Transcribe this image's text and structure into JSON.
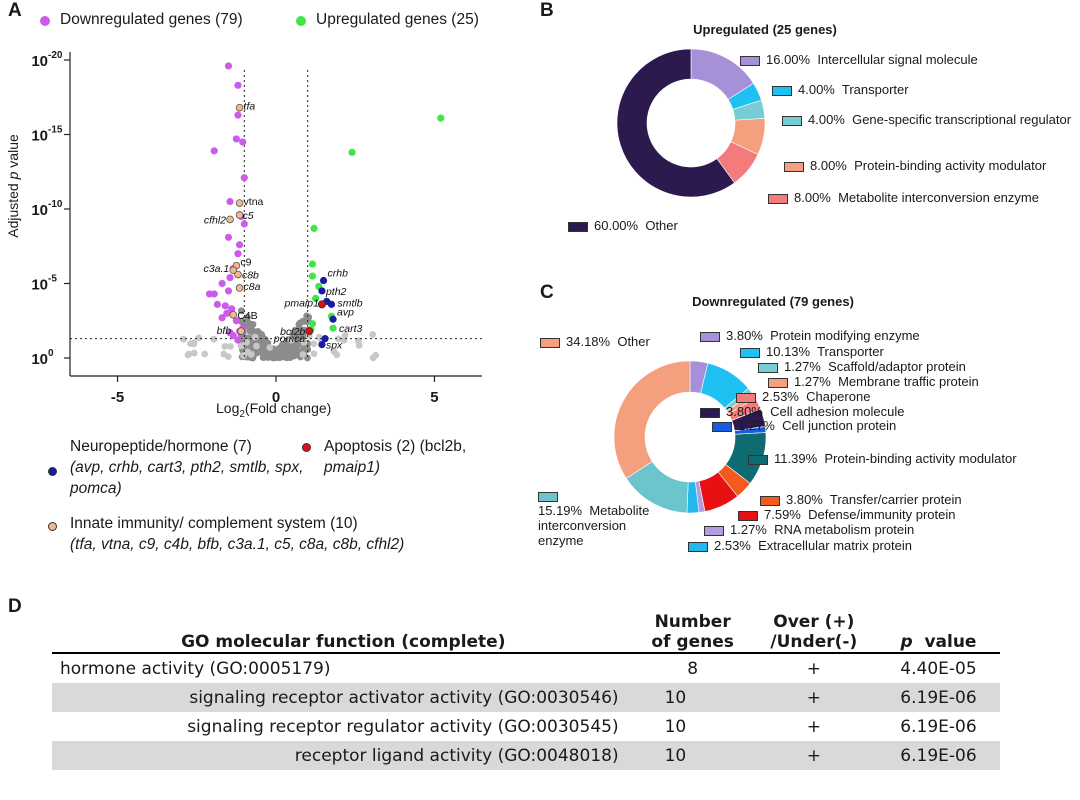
{
  "panels": {
    "a": "A",
    "b": "B",
    "c": "C",
    "d": "D"
  },
  "volcano": {
    "legend": {
      "down": {
        "label": "Downregulated genes (79)",
        "color": "#cc5ce8"
      },
      "up": {
        "label": "Upregulated genes (25)",
        "color": "#3ee64a"
      }
    },
    "xlabel_pre": "Log",
    "xlabel_sub": "2",
    "xlabel_post": "(Fold change)",
    "ylabel_pre": "Adjusted ",
    "ylabel_italic": "p",
    "ylabel_post": " value",
    "x_ticks": [
      "-5",
      "0",
      "5"
    ],
    "y_ticks": [
      {
        "base": "10",
        "exp": "0"
      },
      {
        "base": "10",
        "exp": "-5"
      },
      {
        "base": "10",
        "exp": "-10"
      },
      {
        "base": "10",
        "exp": "-15"
      },
      {
        "base": "10",
        "exp": "-20"
      }
    ],
    "colors": {
      "grey": "#8c8c8c",
      "neuro": "#1a1aa6",
      "apoptosis": "#e01010",
      "immune": "#f2b88e"
    },
    "labels": [
      "tfa",
      "vtna",
      "c5",
      "cfhl2",
      "c9",
      "c3a.1",
      "c8b",
      "c8a",
      "C4B",
      "bfb",
      "crhb",
      "pth2",
      "smtlb",
      "pmaip1",
      "avp",
      "bcl2b",
      "cart3",
      "pomca",
      "spx"
    ]
  },
  "categories": {
    "neuro_title": "Neuropeptide/hormone (7)",
    "neuro_genes": "(avp, crhb, cart3, pth2, smtlb, spx, pomca)",
    "apop_title": "Apoptosis (2) (bcl2b,",
    "apop_genes": "pmaip1)",
    "immune_title": "Innate immunity/ complement system (10)",
    "immune_genes": "(tfa, vtna, c9, c4b, bfb, c3a.1, c5, c8a, c8b, cfhl2)"
  },
  "chart_data": [
    {
      "type": "scatter",
      "panel": "A",
      "xlabel": "Log2(Fold change)",
      "ylabel": "Adjusted p value",
      "xlim": [
        -6.5,
        6.5
      ],
      "ylim_exponent": [
        0,
        -20
      ],
      "y_scale": "log",
      "series": [
        {
          "name": "Downregulated genes (79)",
          "points": [
            [
              -1.5,
              -19.6
            ],
            [
              -1.2,
              -18.3
            ],
            [
              -1.2,
              -16.3
            ],
            [
              -1.05,
              -14.5
            ],
            [
              -1.95,
              -13.9
            ],
            [
              -1.25,
              -14.7
            ],
            [
              -1.0,
              -12.1
            ],
            [
              -1.45,
              -10.5
            ],
            [
              -1.1,
              -9.5
            ],
            [
              -1.0,
              -9.0
            ],
            [
              -1.5,
              -8.1
            ],
            [
              -1.15,
              -7.6
            ],
            [
              -1.2,
              -7.0
            ],
            [
              -1.35,
              -6.0
            ],
            [
              -1.45,
              -5.4
            ],
            [
              -1.7,
              -5.0
            ],
            [
              -2.1,
              -4.3
            ],
            [
              -1.95,
              -4.3
            ],
            [
              -1.5,
              -4.5
            ],
            [
              -1.85,
              -3.6
            ],
            [
              -1.6,
              -3.5
            ],
            [
              -1.4,
              -3.3
            ],
            [
              -1.55,
              -3.0
            ],
            [
              -1.7,
              -2.7
            ],
            [
              -1.25,
              -2.5
            ],
            [
              -1.05,
              -2.0
            ],
            [
              -1.15,
              -1.8
            ],
            [
              -1.45,
              -1.7
            ],
            [
              -1.35,
              -1.5
            ],
            [
              -1.2,
              -1.2
            ]
          ]
        },
        {
          "name": "Upregulated genes (25)",
          "points": [
            [
              5.2,
              -16.1
            ],
            [
              2.4,
              -13.8
            ],
            [
              1.2,
              -8.7
            ],
            [
              1.15,
              -6.3
            ],
            [
              1.15,
              -5.5
            ],
            [
              1.35,
              -4.8
            ],
            [
              1.6,
              -3.8
            ],
            [
              1.25,
              -4.0
            ],
            [
              1.75,
              -2.8
            ],
            [
              1.15,
              -2.3
            ],
            [
              1.1,
              -1.9
            ],
            [
              1.8,
              -2.0
            ]
          ]
        },
        {
          "name": "Neuropeptide/hormone (7)",
          "points": [
            [
              1.5,
              -5.2
            ],
            [
              1.45,
              -4.5
            ],
            [
              1.6,
              -3.8
            ],
            [
              1.75,
              -3.6
            ],
            [
              1.8,
              -2.6
            ],
            [
              1.55,
              -1.3
            ],
            [
              1.45,
              -0.9
            ]
          ]
        },
        {
          "name": "Apoptosis (2)",
          "points": [
            [
              1.45,
              -3.6
            ],
            [
              1.05,
              -1.8
            ]
          ]
        },
        {
          "name": "Innate immunity/ complement system (10)",
          "points": [
            [
              -1.15,
              -16.8
            ],
            [
              -1.15,
              -10.4
            ],
            [
              -1.15,
              -9.6
            ],
            [
              -1.45,
              -9.3
            ],
            [
              -1.25,
              -6.2
            ],
            [
              -1.35,
              -5.9
            ],
            [
              -1.2,
              -5.6
            ],
            [
              -1.15,
              -4.7
            ],
            [
              -1.35,
              -2.9
            ],
            [
              -1.1,
              -1.8
            ]
          ]
        }
      ]
    },
    {
      "type": "pie",
      "panel": "B",
      "title": "Upregulated (25 genes)",
      "slices": [
        {
          "label": "Intercellular signal molecule",
          "value": 16.0,
          "pct": "16.00%",
          "color": "#a690d8"
        },
        {
          "label": "Transporter",
          "value": 4.0,
          "pct": "4.00%",
          "color": "#1ec1f2"
        },
        {
          "label": "Gene-specific transcriptional regulator",
          "value": 4.0,
          "pct": "4.00%",
          "color": "#78ccd4"
        },
        {
          "label": "Protein-binding activity modulator",
          "value": 8.0,
          "pct": "8.00%",
          "color": "#f4a07e"
        },
        {
          "label": "Metabolite interconversion enzyme",
          "value": 8.0,
          "pct": "8.00%",
          "color": "#f47b7b"
        },
        {
          "label": "Other",
          "value": 60.0,
          "pct": "60.00%",
          "color": "#2c1a4e"
        }
      ]
    },
    {
      "type": "pie",
      "panel": "C",
      "title": "Downregulated (79 genes)",
      "slices": [
        {
          "label": "Protein modifying enzyme",
          "value": 3.8,
          "pct": "3.80%",
          "color": "#a690d8"
        },
        {
          "label": "Transporter",
          "value": 10.13,
          "pct": "10.13%",
          "color": "#1ec1f2"
        },
        {
          "label": "Scaffold/adaptor protein",
          "value": 1.27,
          "pct": "1.27%",
          "color": "#78ccd4"
        },
        {
          "label": "Membrane traffic protein",
          "value": 1.27,
          "pct": "1.27%",
          "color": "#f4a07e"
        },
        {
          "label": "Chaperone",
          "value": 2.53,
          "pct": "2.53%",
          "color": "#f47b7b"
        },
        {
          "label": "Cell adhesion molecule",
          "value": 3.8,
          "pct": "3.80%",
          "color": "#2c1a4e"
        },
        {
          "label": "Cell junction protein",
          "value": 1.27,
          "pct": "1.27%",
          "color": "#1a5ce0"
        },
        {
          "label": "Protein-binding activity modulator",
          "value": 11.39,
          "pct": "11.39%",
          "color": "#0f6b72"
        },
        {
          "label": "Transfer/carrier protein",
          "value": 3.8,
          "pct": "3.80%",
          "color": "#f25a1e"
        },
        {
          "label": "Defense/immunity protein",
          "value": 7.59,
          "pct": "7.59%",
          "color": "#e81010"
        },
        {
          "label": "RNA metabolism protein",
          "value": 1.27,
          "pct": "1.27%",
          "color": "#b49be0"
        },
        {
          "label": "Extracellular matrix protein",
          "value": 2.53,
          "pct": "2.53%",
          "color": "#22b8ee"
        },
        {
          "label": "Metabolite interconversion enzyme",
          "value": 15.19,
          "pct": "15.19%",
          "color": "#6cc4cc"
        },
        {
          "label": "Other",
          "value": 34.18,
          "pct": "34.18%",
          "color": "#f4a07e"
        }
      ]
    },
    {
      "type": "table",
      "panel": "D",
      "columns": [
        "GO molecular function (complete)",
        "Number of genes",
        "Over (+) /Under(-)",
        "p value"
      ],
      "header": {
        "c1": "GO molecular function (complete)",
        "c2a": "Number",
        "c2b": "of genes",
        "c3a": "Over (+)",
        "c3b": "/Under(-)",
        "c4_italic": "p",
        "c4_rest": "  value"
      },
      "rows": [
        {
          "function": "hormone activity (GO:0005179)",
          "n": "8",
          "dir": "+",
          "p": "4.40E-05"
        },
        {
          "function": "signaling receptor activator activity (GO:0030546)",
          "n": "10",
          "dir": "+",
          "p": "6.19E-06"
        },
        {
          "function": "signaling receptor regulator activity (GO:0030545)",
          "n": "10",
          "dir": "+",
          "p": "6.19E-06"
        },
        {
          "function": "receptor ligand activity (GO:0048018)",
          "n": "10",
          "dir": "+",
          "p": "6.19E-06"
        }
      ]
    }
  ]
}
